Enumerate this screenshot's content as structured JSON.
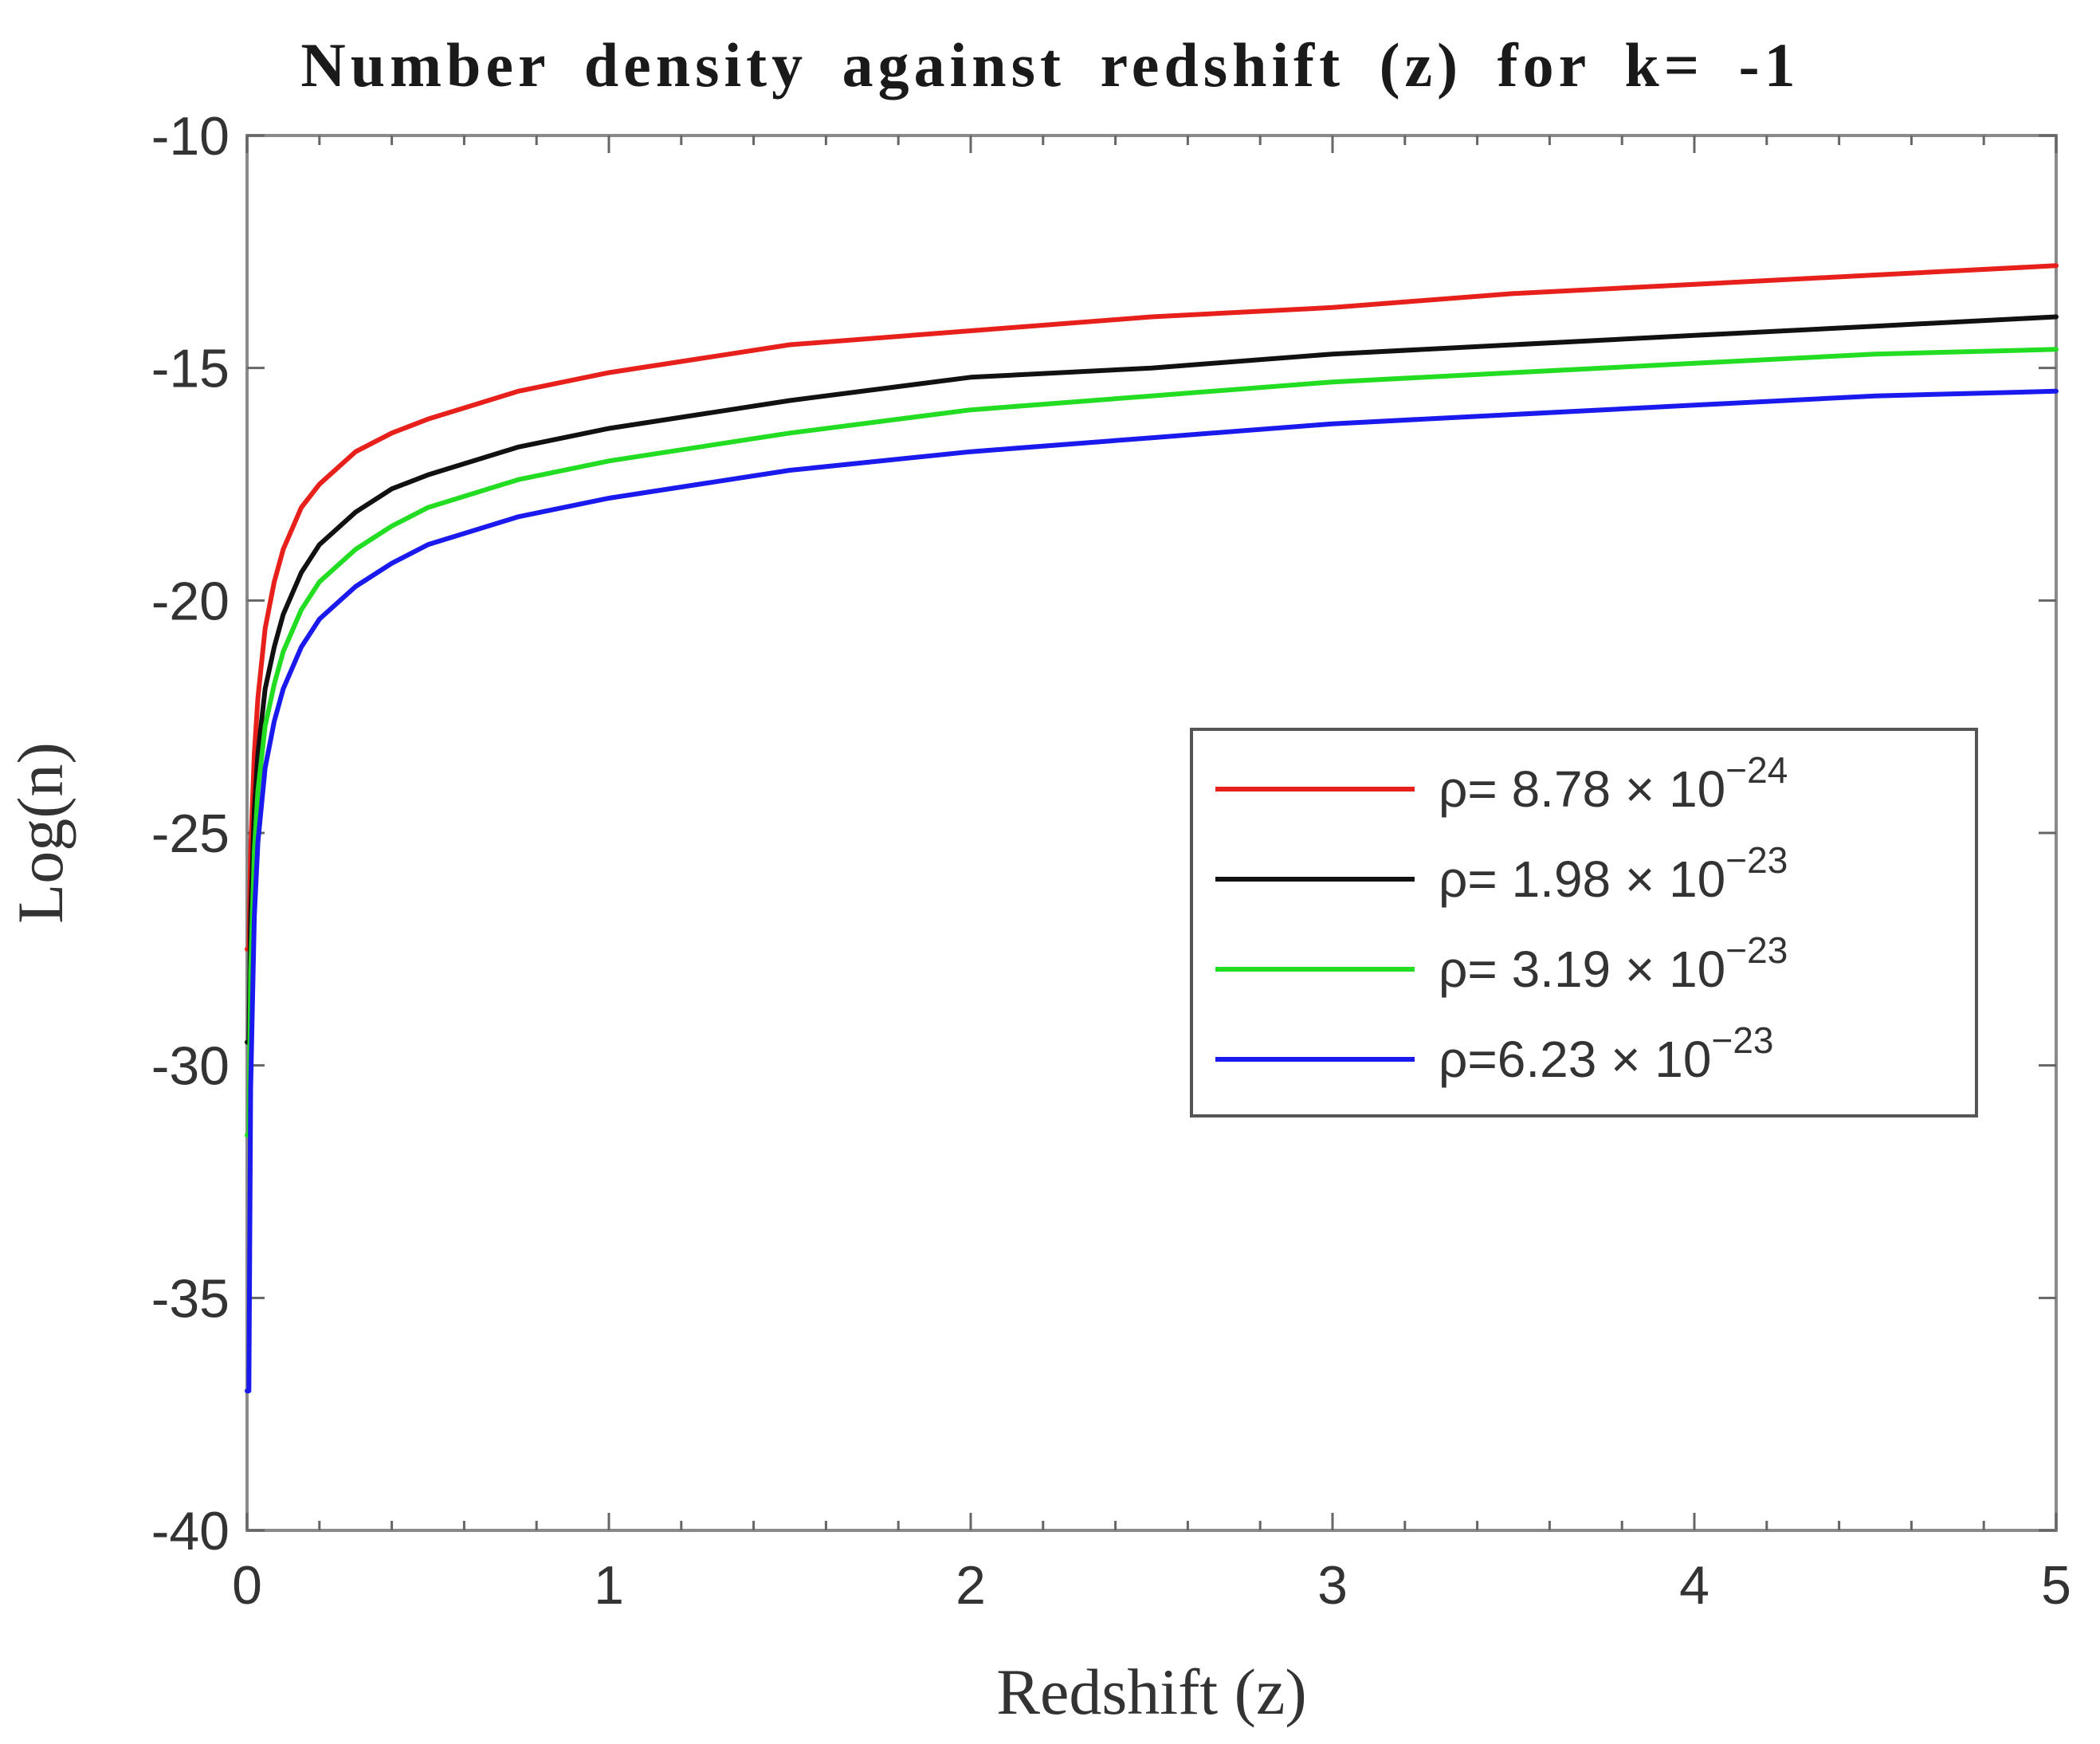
{
  "chart_data": {
    "type": "line",
    "title": "Number density against redshift (z) for k= -1",
    "xlabel": "Redshift (z)",
    "ylabel": "Log(n)",
    "xlim": [
      0,
      5
    ],
    "ylim": [
      -40,
      -10
    ],
    "xticks": [
      0,
      1,
      2,
      3,
      4,
      5
    ],
    "yticks": [
      -40,
      -35,
      -30,
      -25,
      -20,
      -15,
      -10
    ],
    "xtick_labels": [
      "0",
      "1",
      "2",
      "3",
      "4",
      "5"
    ],
    "ytick_labels": [
      "-40",
      "-35",
      "-30",
      "-25",
      "-20",
      "-15",
      "-10"
    ],
    "grid": false,
    "legend_position": "right",
    "x": [
      0.005,
      0.01,
      0.02,
      0.03,
      0.05,
      0.075,
      0.1,
      0.15,
      0.2,
      0.3,
      0.4,
      0.5,
      0.75,
      1,
      1.5,
      2,
      2.5,
      3,
      3.5,
      4,
      4.5,
      5
    ],
    "series": [
      {
        "name_prefix": "ρ= 8.78 × 10",
        "name_exponent": "−24",
        "color": "#e8201c",
        "values": [
          -27.5,
          -25.4,
          -23.3,
          -22.1,
          -20.6,
          -19.6,
          -18.9,
          -18.0,
          -17.5,
          -16.8,
          -16.4,
          -16.1,
          -15.5,
          -15.1,
          -14.5,
          -14.2,
          -13.9,
          -13.7,
          -13.4,
          -13.2,
          -13.0,
          -12.8
        ]
      },
      {
        "name_prefix": "ρ= 1.98 × 10",
        "name_exponent": "−23",
        "color": "#111111",
        "values": [
          -29.5,
          -26.8,
          -24.5,
          -23.3,
          -21.9,
          -21.0,
          -20.3,
          -19.4,
          -18.8,
          -18.1,
          -17.6,
          -17.3,
          -16.7,
          -16.3,
          -15.7,
          -15.2,
          -15.0,
          -14.7,
          -14.5,
          -14.3,
          -14.1,
          -13.9
        ]
      },
      {
        "name_prefix": "ρ= 3.19 × 10",
        "name_exponent": "−23",
        "color": "#22dd22",
        "values": [
          -31.5,
          -28.0,
          -25.4,
          -24.1,
          -22.7,
          -21.8,
          -21.1,
          -20.2,
          -19.6,
          -18.9,
          -18.4,
          -18.0,
          -17.4,
          -17.0,
          -16.4,
          -15.9,
          -15.6,
          -15.3,
          -15.1,
          -14.9,
          -14.7,
          -14.6
        ]
      },
      {
        "name_prefix": "ρ=6.23 × 10",
        "name_exponent": "−23",
        "color": "#1a1aee",
        "values": [
          -37.0,
          -30.5,
          -26.8,
          -25.2,
          -23.6,
          -22.6,
          -21.9,
          -21.0,
          -20.4,
          -19.7,
          -19.2,
          -18.8,
          -18.2,
          -17.8,
          -17.2,
          -16.8,
          -16.5,
          -16.2,
          -16.0,
          -15.8,
          -15.6,
          -15.5
        ]
      }
    ]
  }
}
